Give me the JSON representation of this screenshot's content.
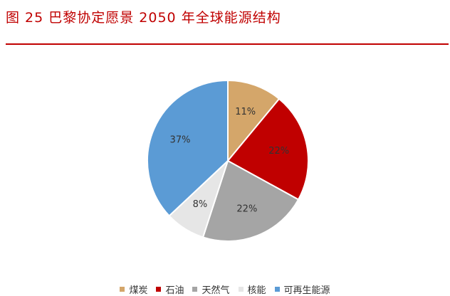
{
  "figure": {
    "title": "图 25  巴黎协定愿景 2050 年全球能源结构",
    "rule_color": "#c00000"
  },
  "chart_data": {
    "type": "pie",
    "title": "图 25  巴黎协定愿景 2050 年全球能源结构",
    "start_angle_deg": 0,
    "direction": "clockwise",
    "legend_position": "bottom",
    "slices": [
      {
        "label": "煤炭",
        "value": 11,
        "display": "11%",
        "color": "#d4a66a"
      },
      {
        "label": "石油",
        "value": 22,
        "display": "22%",
        "color": "#c00000"
      },
      {
        "label": "天然气",
        "value": 22,
        "display": "22%",
        "color": "#a5a5a5"
      },
      {
        "label": "核能",
        "value": 8,
        "display": "8%",
        "color": "#e6e6e6"
      },
      {
        "label": "可再生能源",
        "value": 37,
        "display": "37%",
        "color": "#5b9bd5"
      }
    ]
  }
}
